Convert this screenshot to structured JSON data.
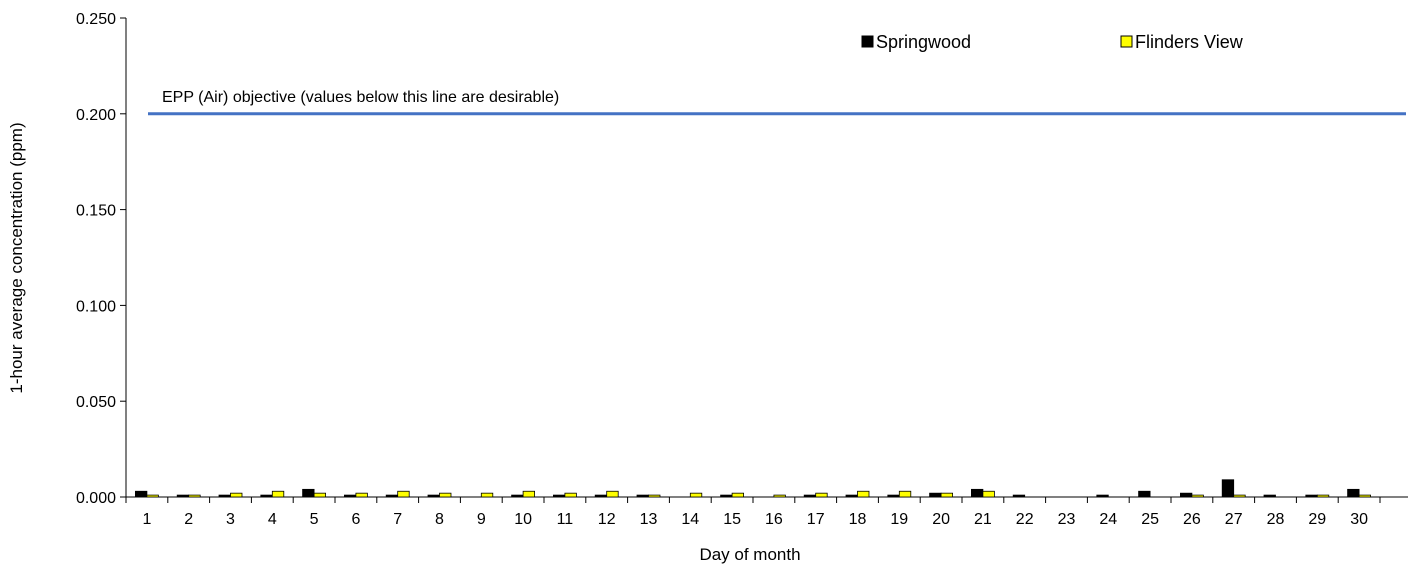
{
  "chart_data": {
    "type": "bar",
    "title": "",
    "xlabel": "Day of month",
    "ylabel": "1-hour average concentration (ppm)",
    "categories": [
      "1",
      "2",
      "3",
      "4",
      "5",
      "6",
      "7",
      "8",
      "9",
      "10",
      "11",
      "12",
      "13",
      "14",
      "15",
      "16",
      "17",
      "18",
      "19",
      "20",
      "21",
      "22",
      "23",
      "24",
      "25",
      "26",
      "27",
      "28",
      "29",
      "30"
    ],
    "yticks": [
      "0.000",
      "0.050",
      "0.100",
      "0.150",
      "0.200",
      "0.250"
    ],
    "ylim": [
      0,
      0.25
    ],
    "grid": false,
    "legend_position": "top-right",
    "series": [
      {
        "name": "Springwood",
        "color": "#000000",
        "values": [
          0.003,
          0.001,
          0.001,
          0.001,
          0.004,
          0.001,
          0.001,
          0.001,
          0,
          0.001,
          0.001,
          0.001,
          0.001,
          0,
          0.001,
          0,
          0.001,
          0.001,
          0.001,
          0.002,
          0.004,
          0.001,
          0,
          0.001,
          0.003,
          0.002,
          0.009,
          0.001,
          0.001,
          0.004
        ]
      },
      {
        "name": "Flinders View",
        "color": "#ffff00",
        "values": [
          0.001,
          0.001,
          0.002,
          0.003,
          0.002,
          0.002,
          0.003,
          0.002,
          0.002,
          0.003,
          0.002,
          0.003,
          0.001,
          0.002,
          0.002,
          0.001,
          0.002,
          0.003,
          0.003,
          0.002,
          0.003,
          0,
          0,
          0,
          0,
          0.001,
          0.001,
          0,
          0.001,
          0.001
        ]
      }
    ],
    "reference_line": {
      "value": 0.2,
      "color": "#4472c4",
      "label": "EPP (Air) objective (values below this line are desirable)"
    }
  }
}
